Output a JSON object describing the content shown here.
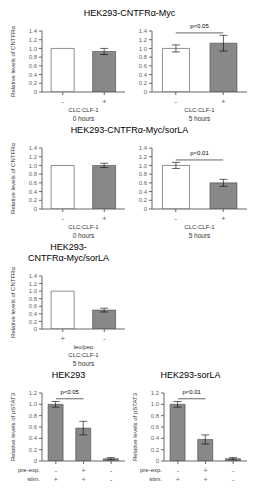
{
  "chart_data": [
    {
      "type": "bar",
      "title": "HEK293-CNTFRα-Myc",
      "x_label": "0 hours",
      "y_label": "Relative levels of CNTFRα",
      "categories": [
        "-",
        "+"
      ],
      "values": [
        1.0,
        0.93
      ],
      "errors": [
        0.0,
        0.07
      ],
      "colors": [
        "#ffffff",
        "#888888"
      ],
      "ylim": [
        0,
        1.4
      ],
      "yticks": [
        0,
        0.2,
        0.4,
        0.6,
        0.8,
        {
          "value": 1.0,
          "label": "1.0"
        },
        1.2,
        1.4
      ],
      "annotations": [
        "CLC:CLF-1"
      ]
    },
    {
      "type": "bar",
      "x_label": "5 hours",
      "categories": [
        "-",
        "+"
      ],
      "values": [
        1.0,
        1.12
      ],
      "errors": [
        0.08,
        0.18
      ],
      "colors": [
        "#ffffff",
        "#888888"
      ],
      "ylim": [
        0,
        1.4
      ],
      "yticks": [
        0,
        0.2,
        0.4,
        0.6,
        0.8,
        {
          "value": 1.0,
          "label": "1.0"
        },
        1.2,
        1.4
      ],
      "annotations": [
        "CLC:CLF-1"
      ],
      "p_value": "p<0.05"
    },
    {
      "type": "bar",
      "title": "HEK293-CNTFRα-Myc/sorLA",
      "x_label": "0 hours",
      "y_label": "Relative levels of CNTFRα",
      "categories": [
        "-",
        "+"
      ],
      "values": [
        1.0,
        1.0
      ],
      "errors": [
        0.0,
        0.05
      ],
      "colors": [
        "#ffffff",
        "#888888"
      ],
      "ylim": [
        0,
        1.4
      ],
      "yticks": [
        0,
        0.2,
        0.4,
        0.6,
        0.8,
        {
          "value": 1.0,
          "label": "1.0"
        },
        1.2,
        1.4
      ],
      "annotations": [
        "CLC:CLF-1"
      ]
    },
    {
      "type": "bar",
      "x_label": "5 hours",
      "categories": [
        "-",
        "+"
      ],
      "values": [
        1.0,
        0.6
      ],
      "errors": [
        0.07,
        0.08
      ],
      "colors": [
        "#ffffff",
        "#888888"
      ],
      "ylim": [
        0,
        1.4
      ],
      "yticks": [
        0,
        0.2,
        0.4,
        0.6,
        0.8,
        {
          "value": 1.0,
          "label": "1.0"
        },
        1.2,
        1.4
      ],
      "annotations": [
        "CLC:CLF-1"
      ],
      "p_value": "p<0.01"
    },
    {
      "type": "bar",
      "title": "HEK293-\nCNTFRα-Myc/sorLA",
      "x_label": "5 hours",
      "y_label": "Relative levels of CNTFRα",
      "categories": [
        "+",
        "-"
      ],
      "values": [
        1.0,
        0.5
      ],
      "errors": [
        0.0,
        0.05
      ],
      "colors": [
        "#ffffff",
        "#888888"
      ],
      "ylim": [
        0,
        1.4
      ],
      "yticks": [
        0,
        0.2,
        0.4,
        0.6,
        0.8,
        {
          "value": 1.0,
          "label": "1.0"
        },
        1.2,
        1.4
      ],
      "annotations": [
        "leu/pep",
        "CLC:CLF-1"
      ]
    },
    {
      "type": "bar",
      "title": "HEK293",
      "y_label": "Relative levels of pSTAT3",
      "categories": [
        null,
        null,
        null
      ],
      "category_rows": [
        {
          "label": "pre-exp.",
          "values": [
            "-",
            "+",
            "-"
          ]
        },
        {
          "label": "stim.",
          "values": [
            "+",
            "+",
            "-"
          ]
        }
      ],
      "values": [
        1.0,
        0.58,
        0.04
      ],
      "errors": [
        0.05,
        0.12,
        0.02
      ],
      "color": "#888888",
      "ylim": [
        0,
        1.2
      ],
      "yticks": [
        0,
        0.2,
        0.4,
        0.6,
        0.8,
        {
          "value": 1.0,
          "label": "1.0"
        },
        1.2
      ],
      "p_value": "p<0.05"
    },
    {
      "type": "bar",
      "title": "HEK293-sorLA",
      "y_label": "Relative levels of pSTAT3",
      "categories": [
        null,
        null,
        null
      ],
      "category_rows": [
        {
          "label": "pre-exp.",
          "values": [
            "-",
            "+",
            "-"
          ]
        },
        {
          "label": "stim.",
          "values": [
            "+",
            "+",
            "-"
          ]
        }
      ],
      "values": [
        1.0,
        0.38,
        0.04
      ],
      "errors": [
        0.05,
        0.08,
        0.02
      ],
      "color": "#888888",
      "ylim": [
        0,
        1.2
      ],
      "yticks": [
        0,
        0.2,
        0.4,
        0.6,
        0.8,
        {
          "value": 1.0,
          "label": "1.0"
        },
        1.2
      ],
      "p_value": "p<0.01"
    }
  ]
}
